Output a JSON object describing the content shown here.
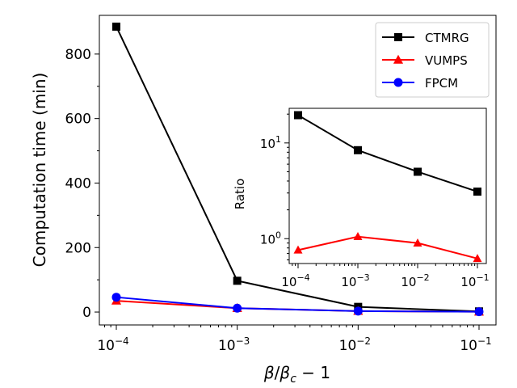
{
  "chart_data": [
    {
      "type": "line",
      "x": [
        0.0001,
        0.001,
        0.01,
        0.1
      ],
      "x_scale": "log",
      "x_tick_exponents": [
        "−4",
        "−3",
        "−2",
        "−1"
      ],
      "xlabel_parts": {
        "beta": "β",
        "slash": "/",
        "beta_c_main": "β",
        "beta_c_sub": "c",
        "tail": " − 1"
      },
      "ylabel": "Computation time (min)",
      "ylim": [
        -40,
        920
      ],
      "y_ticks": [
        0,
        200,
        400,
        600,
        800
      ],
      "y_tick_labels": [
        "0",
        "200",
        "400",
        "600",
        "800"
      ],
      "legend_position": "top-right",
      "series": [
        {
          "name": "CTMRG",
          "color": "#000000",
          "marker": "square",
          "values": [
            885,
            97,
            16,
            2
          ]
        },
        {
          "name": "VUMPS",
          "color": "#ff0000",
          "marker": "triangle",
          "values": [
            35,
            12,
            3,
            1
          ]
        },
        {
          "name": "FPCM",
          "color": "#0000ff",
          "marker": "circle",
          "values": [
            46,
            12,
            3,
            1
          ]
        }
      ]
    },
    {
      "type": "line",
      "x": [
        0.0001,
        0.001,
        0.01,
        0.1
      ],
      "x_scale": "log",
      "y_scale": "log",
      "ylabel": "Ratio",
      "ylim": [
        0.55,
        23
      ],
      "y_major_ticks": [
        {
          "value": 1,
          "base": "10",
          "exp": "0"
        },
        {
          "value": 10,
          "base": "10",
          "exp": "1"
        }
      ],
      "x_tick_exponents": [
        "−4",
        "−3",
        "−2",
        "−1"
      ],
      "series": [
        {
          "color": "#000000",
          "marker": "square",
          "values": [
            19.5,
            8.4,
            5.0,
            3.1
          ]
        },
        {
          "color": "#ff0000",
          "marker": "triangle",
          "values": [
            0.76,
            1.05,
            0.9,
            0.62
          ]
        }
      ]
    }
  ]
}
